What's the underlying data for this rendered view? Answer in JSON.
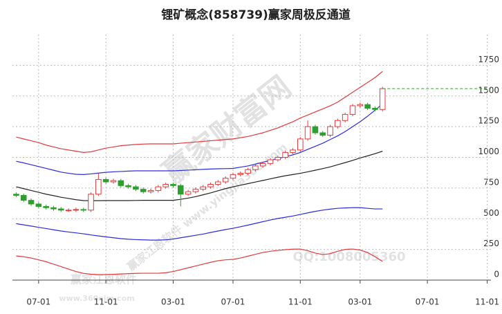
{
  "chart_data": {
    "type": "candlestick",
    "title": "锂矿概念(858739)赢家周极反通道",
    "categories": [
      null,
      null,
      null,
      "07-01",
      null,
      null,
      null,
      null,
      null,
      null,
      null,
      null,
      "11-01",
      null,
      null,
      null,
      null,
      null,
      null,
      null,
      null,
      "03-01",
      null,
      null,
      null,
      null,
      null,
      null,
      null,
      "07-01",
      null,
      null,
      null,
      null,
      null,
      null,
      null,
      null,
      "11-01",
      null,
      null,
      null,
      null,
      null,
      null,
      null,
      "03-01",
      null,
      null,
      null,
      null,
      null,
      null,
      null,
      null,
      "07-01",
      null,
      null,
      null,
      null,
      null,
      null,
      null,
      "11-01"
    ],
    "open": [
      700,
      690,
      650,
      620,
      600,
      590,
      580,
      570,
      570,
      575,
      570,
      700,
      820,
      800,
      810,
      770,
      760,
      740,
      720,
      730,
      760,
      780,
      770,
      700,
      720,
      740,
      760,
      780,
      800,
      830,
      860,
      870,
      900,
      930,
      950,
      980,
      1000,
      1040,
      1060,
      1150,
      1250,
      1200,
      1180,
      1250,
      1300,
      1350,
      1420,
      1430,
      1400,
      1390,
      null,
      null,
      null,
      null,
      null,
      null,
      null,
      null,
      null,
      null,
      null,
      null,
      null,
      null
    ],
    "high": [
      715,
      705,
      665,
      635,
      615,
      605,
      595,
      585,
      590,
      590,
      715,
      870,
      835,
      825,
      825,
      785,
      775,
      755,
      745,
      775,
      795,
      795,
      785,
      735,
      755,
      775,
      795,
      815,
      845,
      875,
      885,
      915,
      945,
      965,
      995,
      1015,
      1055,
      1075,
      1165,
      1300,
      1265,
      1215,
      1265,
      1315,
      1365,
      1435,
      1445,
      1445,
      1415,
      1575,
      null,
      null,
      null,
      null,
      null,
      null,
      null,
      null,
      null,
      null,
      null,
      null,
      null,
      null
    ],
    "low": [
      675,
      635,
      605,
      585,
      575,
      565,
      555,
      555,
      555,
      555,
      555,
      685,
      785,
      785,
      755,
      745,
      725,
      705,
      705,
      715,
      745,
      755,
      600,
      685,
      705,
      725,
      745,
      765,
      785,
      815,
      845,
      855,
      885,
      915,
      935,
      965,
      985,
      1025,
      1045,
      1135,
      1185,
      1165,
      1165,
      1235,
      1285,
      1335,
      1405,
      1385,
      1375,
      1375,
      null,
      null,
      null,
      null,
      null,
      null,
      null,
      null,
      null,
      null,
      null,
      null,
      null,
      null
    ],
    "close": [
      690,
      650,
      620,
      600,
      590,
      580,
      570,
      570,
      575,
      570,
      700,
      820,
      800,
      810,
      770,
      760,
      740,
      720,
      730,
      760,
      780,
      770,
      700,
      720,
      740,
      760,
      780,
      800,
      830,
      860,
      870,
      900,
      930,
      950,
      980,
      1000,
      1040,
      1060,
      1150,
      1250,
      1200,
      1180,
      1250,
      1300,
      1350,
      1420,
      1430,
      1400,
      1390,
      1560,
      null,
      null,
      null,
      null,
      null,
      null,
      null,
      null,
      null,
      null,
      null,
      null,
      null,
      null
    ],
    "up_color": "#e3393c",
    "down_color": "#2e9e2e",
    "last_line_color": "#2e9e2e",
    "series": [
      {
        "color": "#e3393c",
        "values": [
          1165,
          1150,
          1135,
          1120,
          1100,
          1085,
          1070,
          1060,
          1050,
          1040,
          1045,
          1060,
          1075,
          1085,
          1095,
          1100,
          1105,
          1108,
          1110,
          1110,
          1110,
          1110,
          1115,
          1120,
          1125,
          1130,
          1135,
          1140,
          1145,
          1150,
          1160,
          1170,
          1185,
          1200,
          1220,
          1240,
          1265,
          1290,
          1320,
          1345,
          1370,
          1395,
          1420,
          1450,
          1490,
          1530,
          1570,
          1610,
          1650,
          1700,
          null,
          null,
          null,
          null,
          null,
          null,
          null,
          null,
          null,
          null,
          null,
          null,
          null,
          null
        ]
      },
      {
        "color": "#2a2ae0",
        "values": [
          968,
          955,
          940,
          925,
          910,
          895,
          880,
          870,
          862,
          860,
          865,
          872,
          878,
          882,
          885,
          888,
          890,
          890,
          890,
          890,
          890,
          890,
          893,
          896,
          899,
          902,
          905,
          907,
          908,
          910,
          920,
          930,
          945,
          960,
          975,
          990,
          1005,
          1020,
          1040,
          1065,
          1090,
          1115,
          1145,
          1175,
          1210,
          1250,
          1290,
          1335,
          1385,
          1435,
          null,
          null,
          null,
          null,
          null,
          null,
          null,
          null,
          null,
          null,
          null,
          null,
          null,
          null
        ]
      },
      {
        "color": "#222222",
        "values": [
          760,
          745,
          730,
          715,
          700,
          688,
          675,
          665,
          655,
          648,
          647,
          647,
          648,
          648,
          648,
          648,
          649,
          650,
          650,
          650,
          650,
          650,
          658,
          668,
          680,
          695,
          710,
          728,
          745,
          760,
          773,
          786,
          799,
          812,
          825,
          838,
          850,
          860,
          870,
          882,
          895,
          908,
          922,
          940,
          957,
          975,
          995,
          1012,
          1030,
          1050,
          null,
          null,
          null,
          null,
          null,
          null,
          null,
          null,
          null,
          null,
          null,
          null,
          null,
          null
        ]
      },
      {
        "color": "#2a2ae0",
        "values": [
          460,
          450,
          440,
          430,
          420,
          410,
          400,
          392,
          385,
          377,
          368,
          360,
          352,
          345,
          338,
          333,
          330,
          328,
          326,
          326,
          328,
          335,
          345,
          355,
          365,
          375,
          388,
          400,
          412,
          422,
          435,
          448,
          462,
          476,
          490,
          502,
          512,
          522,
          535,
          548,
          560,
          570,
          578,
          585,
          588,
          590,
          590,
          585,
          580,
          580,
          null,
          null,
          null,
          null,
          null,
          null,
          null,
          null,
          null,
          null,
          null,
          null,
          null,
          null
        ]
      },
      {
        "color": "#e3393c",
        "values": [
          197,
          190,
          180,
          165,
          150,
          130,
          110,
          90,
          70,
          55,
          48,
          45,
          45,
          47,
          50,
          53,
          55,
          56,
          56,
          56,
          60,
          70,
          85,
          100,
          115,
          130,
          145,
          158,
          165,
          169,
          180,
          195,
          210,
          225,
          235,
          242,
          248,
          252,
          253,
          240,
          220,
          208,
          215,
          235,
          250,
          253,
          245,
          225,
          190,
          152,
          null,
          null,
          null,
          null,
          null,
          null,
          null,
          null,
          null,
          null,
          null,
          null,
          null,
          null
        ]
      }
    ],
    "ylim": [
      0,
      2000
    ],
    "yticks": [
      0,
      250,
      500,
      750,
      1000,
      1250,
      1500,
      1750
    ],
    "grid": true,
    "watermarks": [
      "赢家财富网",
      "赢家江恩软件 www.yingjia360.com",
      "QQ:1008005360",
      "赢家江恩软件",
      "www.360ejm.com"
    ]
  }
}
